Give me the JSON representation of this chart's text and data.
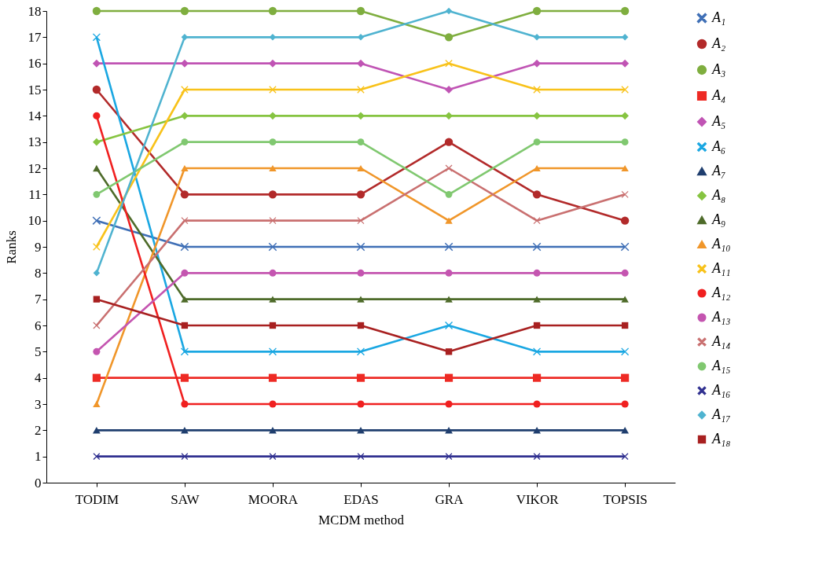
{
  "chart_data": {
    "type": "line",
    "xlabel": "MCDM method",
    "ylabel": "Ranks",
    "categories": [
      "TODIM",
      "SAW",
      "MOORA",
      "EDAS",
      "GRA",
      "VIKOR",
      "TOPSIS"
    ],
    "ylim": [
      0,
      18
    ],
    "yticks": [
      0,
      1,
      2,
      3,
      4,
      5,
      6,
      7,
      8,
      9,
      10,
      11,
      12,
      13,
      14,
      15,
      16,
      17,
      18
    ],
    "grid": false,
    "legend": "right",
    "line_style": "solid",
    "series": [
      {
        "name": "A₁",
        "color": "#3f6fb6",
        "marker": "cross",
        "values": [
          10,
          9,
          9,
          9,
          9,
          9,
          9
        ]
      },
      {
        "name": "A₂",
        "color": "#b22a2a",
        "marker": "circle",
        "values": [
          15,
          11,
          11,
          11,
          13,
          11,
          10
        ]
      },
      {
        "name": "A₃",
        "color": "#7fae3f",
        "marker": "circle",
        "values": [
          18,
          18,
          18,
          18,
          17,
          18,
          18
        ]
      },
      {
        "name": "A₄",
        "color": "#ee2a24",
        "marker": "square",
        "values": [
          4,
          4,
          4,
          4,
          4,
          4,
          4
        ]
      },
      {
        "name": "A₅",
        "color": "#c054b4",
        "marker": "diamond",
        "values": [
          16,
          16,
          16,
          16,
          15,
          16,
          16
        ]
      },
      {
        "name": "A₆",
        "color": "#1aa7e2",
        "marker": "cross",
        "values": [
          17,
          5,
          5,
          5,
          6,
          5,
          5
        ]
      },
      {
        "name": "A₇",
        "color": "#1f3e6e",
        "marker": "triangle",
        "values": [
          2,
          2,
          2,
          2,
          2,
          2,
          2
        ]
      },
      {
        "name": "A₈",
        "color": "#86c441",
        "marker": "diamond",
        "values": [
          13,
          14,
          14,
          14,
          14,
          14,
          14
        ]
      },
      {
        "name": "A₉",
        "color": "#4e6b2a",
        "marker": "triangle",
        "values": [
          12,
          7,
          7,
          7,
          7,
          7,
          7
        ]
      },
      {
        "name": "A₁₀",
        "color": "#f0962a",
        "marker": "triangle",
        "values": [
          3,
          12,
          12,
          12,
          10,
          12,
          12
        ]
      },
      {
        "name": "A₁₁",
        "color": "#f8c21a",
        "marker": "cross",
        "values": [
          9,
          15,
          15,
          15,
          16,
          15,
          15
        ]
      },
      {
        "name": "A₁₂",
        "color": "#f02020",
        "marker": "circle",
        "values": [
          14,
          3,
          3,
          3,
          3,
          3,
          3
        ]
      },
      {
        "name": "A₁₃",
        "color": "#c455b0",
        "marker": "circle",
        "values": [
          5,
          8,
          8,
          8,
          8,
          8,
          8
        ]
      },
      {
        "name": "A₁₄",
        "color": "#c97070",
        "marker": "cross",
        "values": [
          6,
          10,
          10,
          10,
          12,
          10,
          11
        ]
      },
      {
        "name": "A₁₅",
        "color": "#80c870",
        "marker": "circle",
        "values": [
          11,
          13,
          13,
          13,
          11,
          13,
          13
        ]
      },
      {
        "name": "A₁₆",
        "color": "#303090",
        "marker": "cross",
        "values": [
          1,
          1,
          1,
          1,
          1,
          1,
          1
        ]
      },
      {
        "name": "A₁₇",
        "color": "#4fb3d0",
        "marker": "diamond",
        "values": [
          8,
          17,
          17,
          17,
          18,
          17,
          17
        ]
      },
      {
        "name": "A₁₈",
        "color": "#a82020",
        "marker": "square",
        "values": [
          7,
          6,
          6,
          6,
          5,
          6,
          6
        ]
      }
    ]
  }
}
